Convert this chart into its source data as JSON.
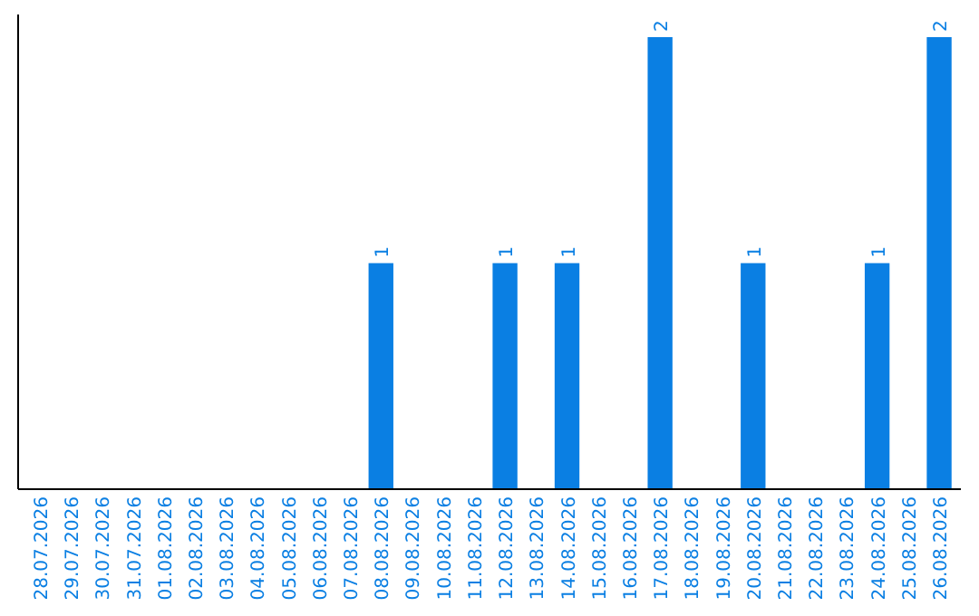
{
  "chart_data": {
    "type": "bar",
    "categories": [
      "28.07.2026",
      "29.07.2026",
      "30.07.2026",
      "31.07.2026",
      "01.08.2026",
      "02.08.2026",
      "03.08.2026",
      "04.08.2026",
      "05.08.2026",
      "06.08.2026",
      "07.08.2026",
      "08.08.2026",
      "09.08.2026",
      "10.08.2026",
      "11.08.2026",
      "12.08.2026",
      "13.08.2026",
      "14.08.2026",
      "15.08.2026",
      "16.08.2026",
      "17.08.2026",
      "18.08.2026",
      "19.08.2026",
      "20.08.2026",
      "21.08.2026",
      "22.08.2026",
      "23.08.2026",
      "24.08.2026",
      "25.08.2026",
      "26.08.2026"
    ],
    "values": [
      0,
      0,
      0,
      0,
      0,
      0,
      0,
      0,
      0,
      0,
      0,
      1,
      0,
      0,
      0,
      1,
      0,
      1,
      0,
      0,
      2,
      0,
      0,
      1,
      0,
      0,
      0,
      1,
      0,
      2
    ],
    "value_labels": [
      null,
      null,
      null,
      null,
      null,
      null,
      null,
      null,
      null,
      null,
      null,
      "1",
      null,
      null,
      null,
      "1",
      null,
      "1",
      null,
      null,
      "2",
      null,
      null,
      "1",
      null,
      null,
      null,
      "1",
      null,
      "2"
    ],
    "color": "#0a7fe3",
    "grid": false
  }
}
